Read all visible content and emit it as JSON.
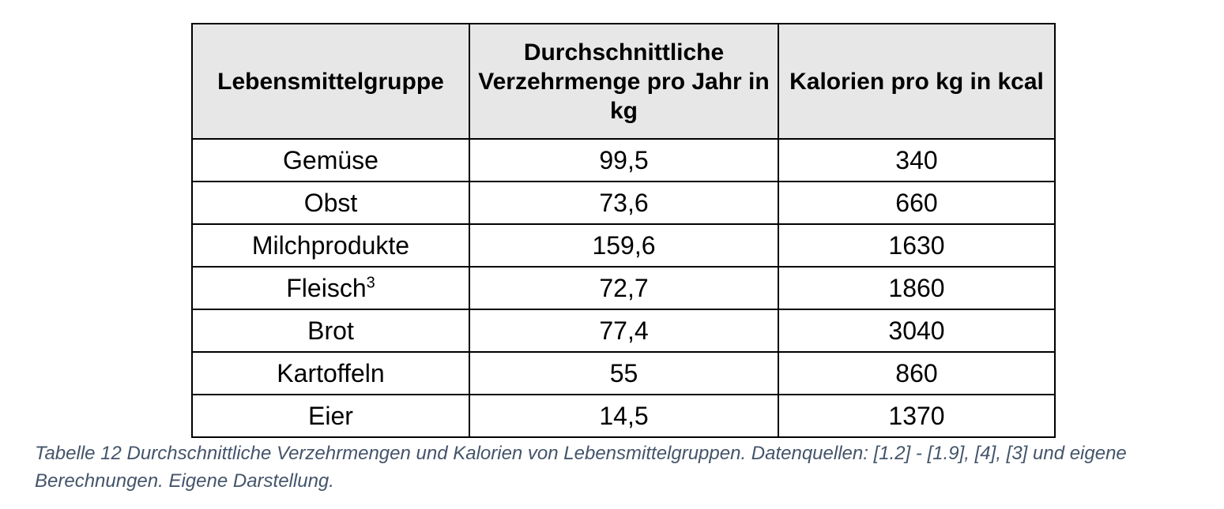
{
  "table": {
    "headers": [
      "Lebensmittelgruppe",
      "Durchschnittliche Verzehrmenge pro Jahr in kg",
      "Kalorien pro kg in kcal"
    ],
    "rows": [
      {
        "group": "Gemüse",
        "note": "",
        "amount": "99,5",
        "kcal": "340"
      },
      {
        "group": "Obst",
        "note": "",
        "amount": "73,6",
        "kcal": "660"
      },
      {
        "group": "Milchprodukte",
        "note": "",
        "amount": "159,6",
        "kcal": "1630"
      },
      {
        "group": "Fleisch",
        "note": "3",
        "amount": "72,7",
        "kcal": "1860"
      },
      {
        "group": "Brot",
        "note": "",
        "amount": "77,4",
        "kcal": "3040"
      },
      {
        "group": "Kartoffeln",
        "note": "",
        "amount": "55",
        "kcal": "860"
      },
      {
        "group": "Eier",
        "note": "",
        "amount": "14,5",
        "kcal": "1370"
      }
    ]
  },
  "caption": "Tabelle 12 Durchschnittliche Verzehrmengen und Kalorien von Lebensmittelgruppen. Datenquellen: [1.2] - [1.9], [4], [3] und eigene Berechnungen. Eigene Darstellung.",
  "colors": {
    "header_background": "#e7e7e7",
    "border": "#000000",
    "caption_text": "#44546a"
  }
}
